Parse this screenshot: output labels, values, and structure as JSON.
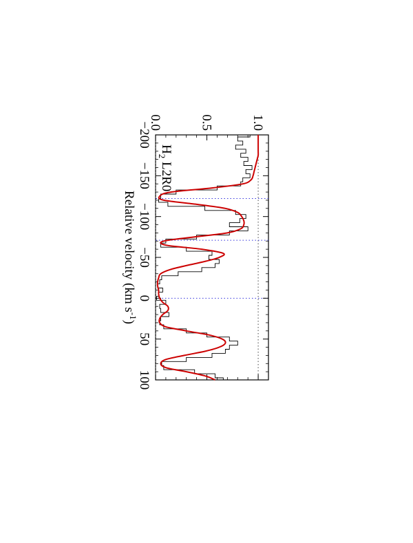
{
  "chart_data": {
    "type": "line",
    "orientation": "rotated 90 degrees clockwise",
    "xlabel": "Relative velocity (km s",
    "xlabel_sup": "-1",
    "xlabel_end": ")",
    "ylabel": "",
    "xlim": [
      -200,
      100
    ],
    "ylim": [
      0,
      1.1
    ],
    "x_ticks": [
      -200,
      -150,
      -100,
      -50,
      0,
      50,
      100
    ],
    "x_tick_labels": [
      "−200",
      "−150",
      "−100",
      "−50",
      "0",
      "50",
      "100"
    ],
    "y_ticks": [
      0,
      0.5,
      1.0
    ],
    "y_tick_labels": [
      "0.0",
      "0.5",
      "1.0"
    ],
    "label_main": "H",
    "label_sub": "2",
    "label_rest": " L2R0",
    "reference_levels": [
      0,
      1.0
    ],
    "velocity_markers": [
      -122,
      -71,
      0
    ],
    "colors": {
      "fit": "#cc0000",
      "data": "#000000",
      "markers": "#3333dd",
      "refs": "#444444"
    },
    "series": [
      {
        "style": "histogram",
        "x": [
          -200,
          -195,
          -190,
          -185,
          -180,
          -175,
          -170,
          -165,
          -160,
          -155,
          -150,
          -145,
          -140,
          -135,
          -130,
          -125,
          -120,
          -115,
          -110,
          -105,
          -100,
          -95,
          -90,
          -85,
          -80,
          -75,
          -70,
          -65,
          -60,
          -55,
          -50,
          -45,
          -40,
          -35,
          -30,
          -25,
          -20,
          -15,
          -10,
          -5,
          0,
          5,
          10,
          15,
          20,
          25,
          30,
          35,
          40,
          45,
          50,
          55,
          60,
          65,
          70,
          75,
          80,
          85,
          90,
          95,
          100
        ],
        "values": [
          0.92,
          0.8,
          0.85,
          0.78,
          0.88,
          0.83,
          0.9,
          0.86,
          0.94,
          0.88,
          0.92,
          0.85,
          0.83,
          0.6,
          0.2,
          0.05,
          0.03,
          0.12,
          0.48,
          0.78,
          0.88,
          0.82,
          0.72,
          0.9,
          0.72,
          0.4,
          0.1,
          0.05,
          0.3,
          0.55,
          0.52,
          0.62,
          0.58,
          0.45,
          0.22,
          0.06,
          0.04,
          0.02,
          0.07,
          0.03,
          0.01,
          0.1,
          0.04,
          0.05,
          0.13,
          0.05,
          0.04,
          0.08,
          0.3,
          0.5,
          0.72,
          0.8,
          0.72,
          0.68,
          0.55,
          0.3,
          0.06,
          0.08,
          0.38,
          0.58,
          0.66
        ]
      },
      {
        "style": "fit",
        "x": [
          -200,
          -195,
          -190,
          -185,
          -180,
          -175,
          -170,
          -165,
          -160,
          -155,
          -150,
          -145,
          -140,
          -135,
          -130,
          -125,
          -120,
          -115,
          -110,
          -105,
          -100,
          -95,
          -90,
          -85,
          -80,
          -75,
          -70,
          -65,
          -60,
          -55,
          -50,
          -45,
          -40,
          -35,
          -30,
          -25,
          -20,
          -15,
          -10,
          -5,
          0,
          5,
          10,
          15,
          20,
          25,
          30,
          35,
          40,
          45,
          50,
          55,
          60,
          65,
          70,
          75,
          80,
          85,
          90,
          95,
          100
        ],
        "values": [
          1.0,
          1.0,
          1.0,
          1.0,
          1.0,
          1.0,
          0.99,
          0.98,
          0.97,
          0.96,
          0.95,
          0.93,
          0.85,
          0.55,
          0.15,
          0.04,
          0.08,
          0.4,
          0.68,
          0.8,
          0.84,
          0.86,
          0.86,
          0.83,
          0.7,
          0.38,
          0.08,
          0.1,
          0.45,
          0.66,
          0.62,
          0.48,
          0.3,
          0.14,
          0.05,
          0.03,
          0.02,
          0.02,
          0.03,
          0.03,
          0.04,
          0.07,
          0.12,
          0.12,
          0.07,
          0.04,
          0.04,
          0.1,
          0.3,
          0.52,
          0.65,
          0.68,
          0.62,
          0.48,
          0.28,
          0.1,
          0.05,
          0.1,
          0.3,
          0.48,
          0.58
        ]
      }
    ]
  }
}
